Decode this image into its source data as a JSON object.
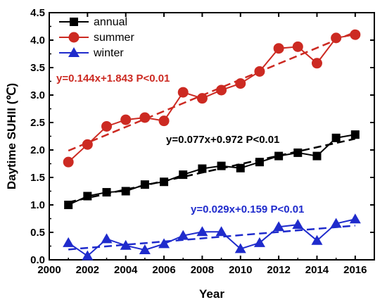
{
  "chart_data": {
    "type": "line",
    "xlabel": "Year",
    "ylabel": "Daytime SUHII (℃)",
    "xlim": [
      2000,
      2017
    ],
    "ylim": [
      0.0,
      4.5
    ],
    "xticks": [
      2000,
      2002,
      2004,
      2006,
      2008,
      2010,
      2012,
      2014,
      2016
    ],
    "xtick_labels": [
      "2000",
      "2002",
      "2004",
      "2006",
      "2008",
      "2010",
      "2012",
      "2014",
      "2016"
    ],
    "yticks": [
      0.0,
      0.5,
      1.0,
      1.5,
      2.0,
      2.5,
      3.0,
      3.5,
      4.0,
      4.5
    ],
    "ytick_labels": [
      "0.0",
      "0.5",
      "1.0",
      "1.5",
      "2.0",
      "2.5",
      "3.0",
      "3.5",
      "4.0",
      "4.5"
    ],
    "grid": false,
    "legend_position": "top-left",
    "x": [
      2001,
      2002,
      2003,
      2004,
      2005,
      2006,
      2007,
      2008,
      2009,
      2010,
      2011,
      2012,
      2013,
      2014,
      2015,
      2016
    ],
    "series": [
      {
        "name": "annual",
        "marker": "square",
        "color": "#000000",
        "values": [
          1.0,
          1.16,
          1.23,
          1.25,
          1.37,
          1.42,
          1.55,
          1.66,
          1.71,
          1.67,
          1.78,
          1.89,
          1.95,
          1.89,
          2.22,
          2.28
        ],
        "trend": {
          "slope": 0.077,
          "intercept": 0.972
        },
        "equation": "y=0.077x+0.972 P<0.01"
      },
      {
        "name": "summer",
        "marker": "circle",
        "color": "#cc2a22",
        "values": [
          1.78,
          2.1,
          2.43,
          2.55,
          2.59,
          2.53,
          3.05,
          2.94,
          3.09,
          3.21,
          3.43,
          3.85,
          3.88,
          3.58,
          4.04,
          4.1
        ],
        "trend": {
          "slope": 0.144,
          "intercept": 1.843
        },
        "equation": "y=0.144x+1.843 P<0.01"
      },
      {
        "name": "winter",
        "marker": "triangle",
        "color": "#1f2bcc",
        "values": [
          0.31,
          0.07,
          0.38,
          0.26,
          0.18,
          0.29,
          0.44,
          0.51,
          0.51,
          0.2,
          0.31,
          0.6,
          0.64,
          0.35,
          0.66,
          0.74
        ],
        "trend": {
          "slope": 0.029,
          "intercept": 0.159
        },
        "equation": "y=0.029x+0.159 P<0.01"
      }
    ]
  }
}
